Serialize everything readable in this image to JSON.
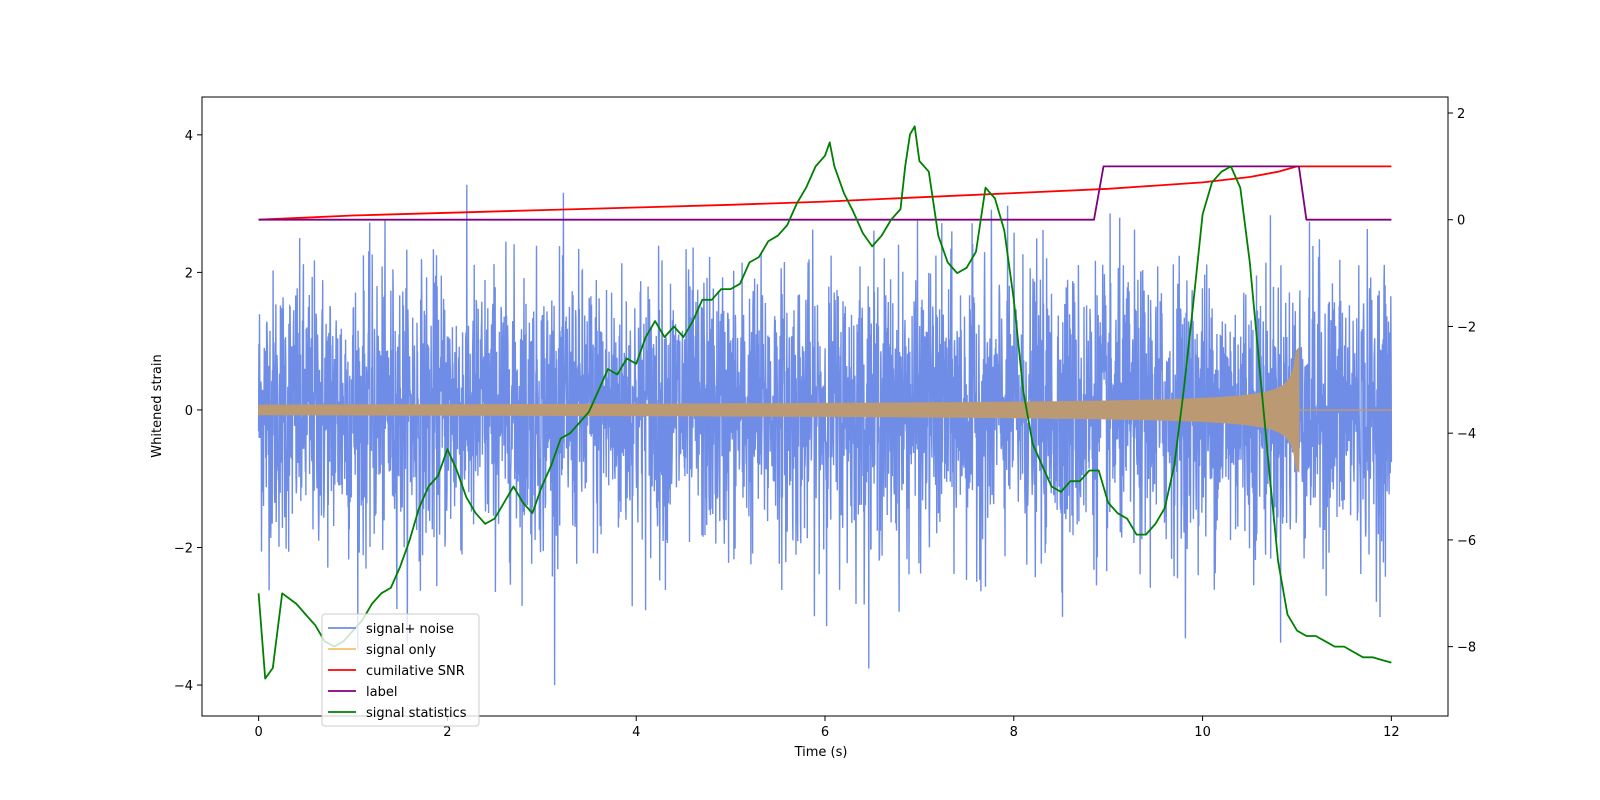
{
  "chart_data": {
    "type": "line",
    "title": "",
    "xlabel": "Time (s)",
    "ylabel": "Whitened strain",
    "y2label": "",
    "xlim": [
      -0.6,
      12.6
    ],
    "ylim": [
      -4.45,
      4.55
    ],
    "y2lim": [
      -9.3,
      2.3
    ],
    "xticks": [
      0,
      2,
      4,
      6,
      8,
      10,
      12
    ],
    "xtick_labels": [
      "0",
      "2",
      "4",
      "6",
      "8",
      "10",
      "12"
    ],
    "yticks": [
      -4,
      -2,
      0,
      2,
      4
    ],
    "ytick_labels": [
      "−4",
      "−2",
      "0",
      "2",
      "4"
    ],
    "y2ticks": [
      -8,
      -6,
      -4,
      -2,
      0,
      2
    ],
    "y2tick_labels": [
      "−8",
      "−6",
      "−4",
      "−2",
      "0",
      "2"
    ],
    "grid": false,
    "legend_position": "lower-left",
    "colors": {
      "signal_noise": "#6f8de6",
      "signal_only": "#f5c36a",
      "signal_only_overlap": "#bb9a73",
      "snr": "#ff0000",
      "label": "#800080",
      "stats": "#008000"
    },
    "series": [
      {
        "name": "signal+ noise",
        "axis": "left",
        "description_stats": {
          "x_start": 0,
          "x_end": 12,
          "approx_std": 1.0,
          "min": -4.0,
          "max": 4.2
        }
      },
      {
        "name": "signal only",
        "axis": "left",
        "chirp": {
          "x_start": 0,
          "x_merger": 11.02,
          "x_end": 12,
          "amp_start": 0.05,
          "amp_merger": 0.9
        }
      },
      {
        "name": "cumilative SNR",
        "axis": "right",
        "x": [
          0,
          1,
          2,
          3,
          4,
          5,
          6,
          7,
          8,
          9,
          9.5,
          10,
          10.5,
          10.8,
          11.0,
          11.02,
          12
        ],
        "values": [
          0.0,
          0.08,
          0.13,
          0.18,
          0.23,
          0.28,
          0.34,
          0.42,
          0.5,
          0.58,
          0.64,
          0.7,
          0.8,
          0.9,
          1.0,
          1.0,
          1.0
        ]
      },
      {
        "name": "label",
        "axis": "right",
        "x": [
          0,
          8.85,
          8.95,
          11.02,
          11.1,
          12
        ],
        "values": [
          0,
          0,
          1,
          1,
          0,
          0
        ]
      },
      {
        "name": "signal statistics",
        "axis": "right",
        "x": [
          0.0,
          0.07,
          0.15,
          0.25,
          0.4,
          0.5,
          0.6,
          0.7,
          0.8,
          0.9,
          1.0,
          1.05,
          1.1,
          1.2,
          1.3,
          1.4,
          1.5,
          1.6,
          1.65,
          1.7,
          1.8,
          1.9,
          2.0,
          2.1,
          2.2,
          2.3,
          2.4,
          2.5,
          2.6,
          2.7,
          2.8,
          2.9,
          3.0,
          3.1,
          3.2,
          3.3,
          3.4,
          3.5,
          3.6,
          3.7,
          3.8,
          3.9,
          4.0,
          4.1,
          4.2,
          4.3,
          4.4,
          4.5,
          4.6,
          4.7,
          4.8,
          4.9,
          5.0,
          5.1,
          5.2,
          5.3,
          5.4,
          5.5,
          5.6,
          5.7,
          5.8,
          5.9,
          6.0,
          6.05,
          6.1,
          6.2,
          6.3,
          6.4,
          6.5,
          6.6,
          6.7,
          6.8,
          6.85,
          6.9,
          6.95,
          7.0,
          7.1,
          7.2,
          7.3,
          7.4,
          7.5,
          7.6,
          7.7,
          7.8,
          7.9,
          8.0,
          8.1,
          8.2,
          8.3,
          8.4,
          8.5,
          8.6,
          8.7,
          8.8,
          8.9,
          9.0,
          9.1,
          9.2,
          9.3,
          9.4,
          9.5,
          9.6,
          9.7,
          9.8,
          9.9,
          10.0,
          10.1,
          10.2,
          10.3,
          10.4,
          10.5,
          10.6,
          10.7,
          10.8,
          10.9,
          11.0,
          11.1,
          11.2,
          11.3,
          11.4,
          11.5,
          11.6,
          11.7,
          11.8,
          11.9,
          12.0
        ],
        "values": [
          -7.0,
          -8.6,
          -8.4,
          -7.0,
          -7.2,
          -7.4,
          -7.6,
          -7.9,
          -8.0,
          -7.9,
          -7.7,
          -7.6,
          -7.5,
          -7.2,
          -7.0,
          -6.9,
          -6.5,
          -6.0,
          -5.7,
          -5.4,
          -5.0,
          -4.8,
          -4.3,
          -4.7,
          -5.2,
          -5.5,
          -5.7,
          -5.6,
          -5.3,
          -5.0,
          -5.3,
          -5.5,
          -5.0,
          -4.6,
          -4.1,
          -4.0,
          -3.8,
          -3.6,
          -3.2,
          -2.8,
          -2.9,
          -2.6,
          -2.7,
          -2.2,
          -1.9,
          -2.2,
          -2.0,
          -2.2,
          -1.9,
          -1.5,
          -1.5,
          -1.3,
          -1.3,
          -1.2,
          -0.8,
          -0.7,
          -0.4,
          -0.3,
          -0.1,
          0.3,
          0.6,
          1.0,
          1.2,
          1.45,
          1.0,
          0.5,
          0.15,
          -0.25,
          -0.5,
          -0.3,
          0.0,
          0.2,
          1.0,
          1.6,
          1.75,
          1.1,
          0.9,
          -0.3,
          -0.8,
          -1.0,
          -0.9,
          -0.6,
          0.6,
          0.4,
          -0.2,
          -1.5,
          -3.2,
          -4.2,
          -4.6,
          -5.0,
          -5.1,
          -4.9,
          -4.9,
          -4.7,
          -4.7,
          -5.3,
          -5.5,
          -5.6,
          -5.9,
          -5.9,
          -5.7,
          -5.4,
          -4.6,
          -3.2,
          -1.6,
          0.1,
          0.7,
          0.9,
          1.0,
          0.6,
          -0.8,
          -2.7,
          -4.6,
          -6.4,
          -7.4,
          -7.7,
          -7.8,
          -7.8,
          -7.9,
          -8.0,
          -8.0,
          -8.1,
          -8.2,
          -8.2,
          -8.25,
          -8.3
        ]
      }
    ]
  }
}
